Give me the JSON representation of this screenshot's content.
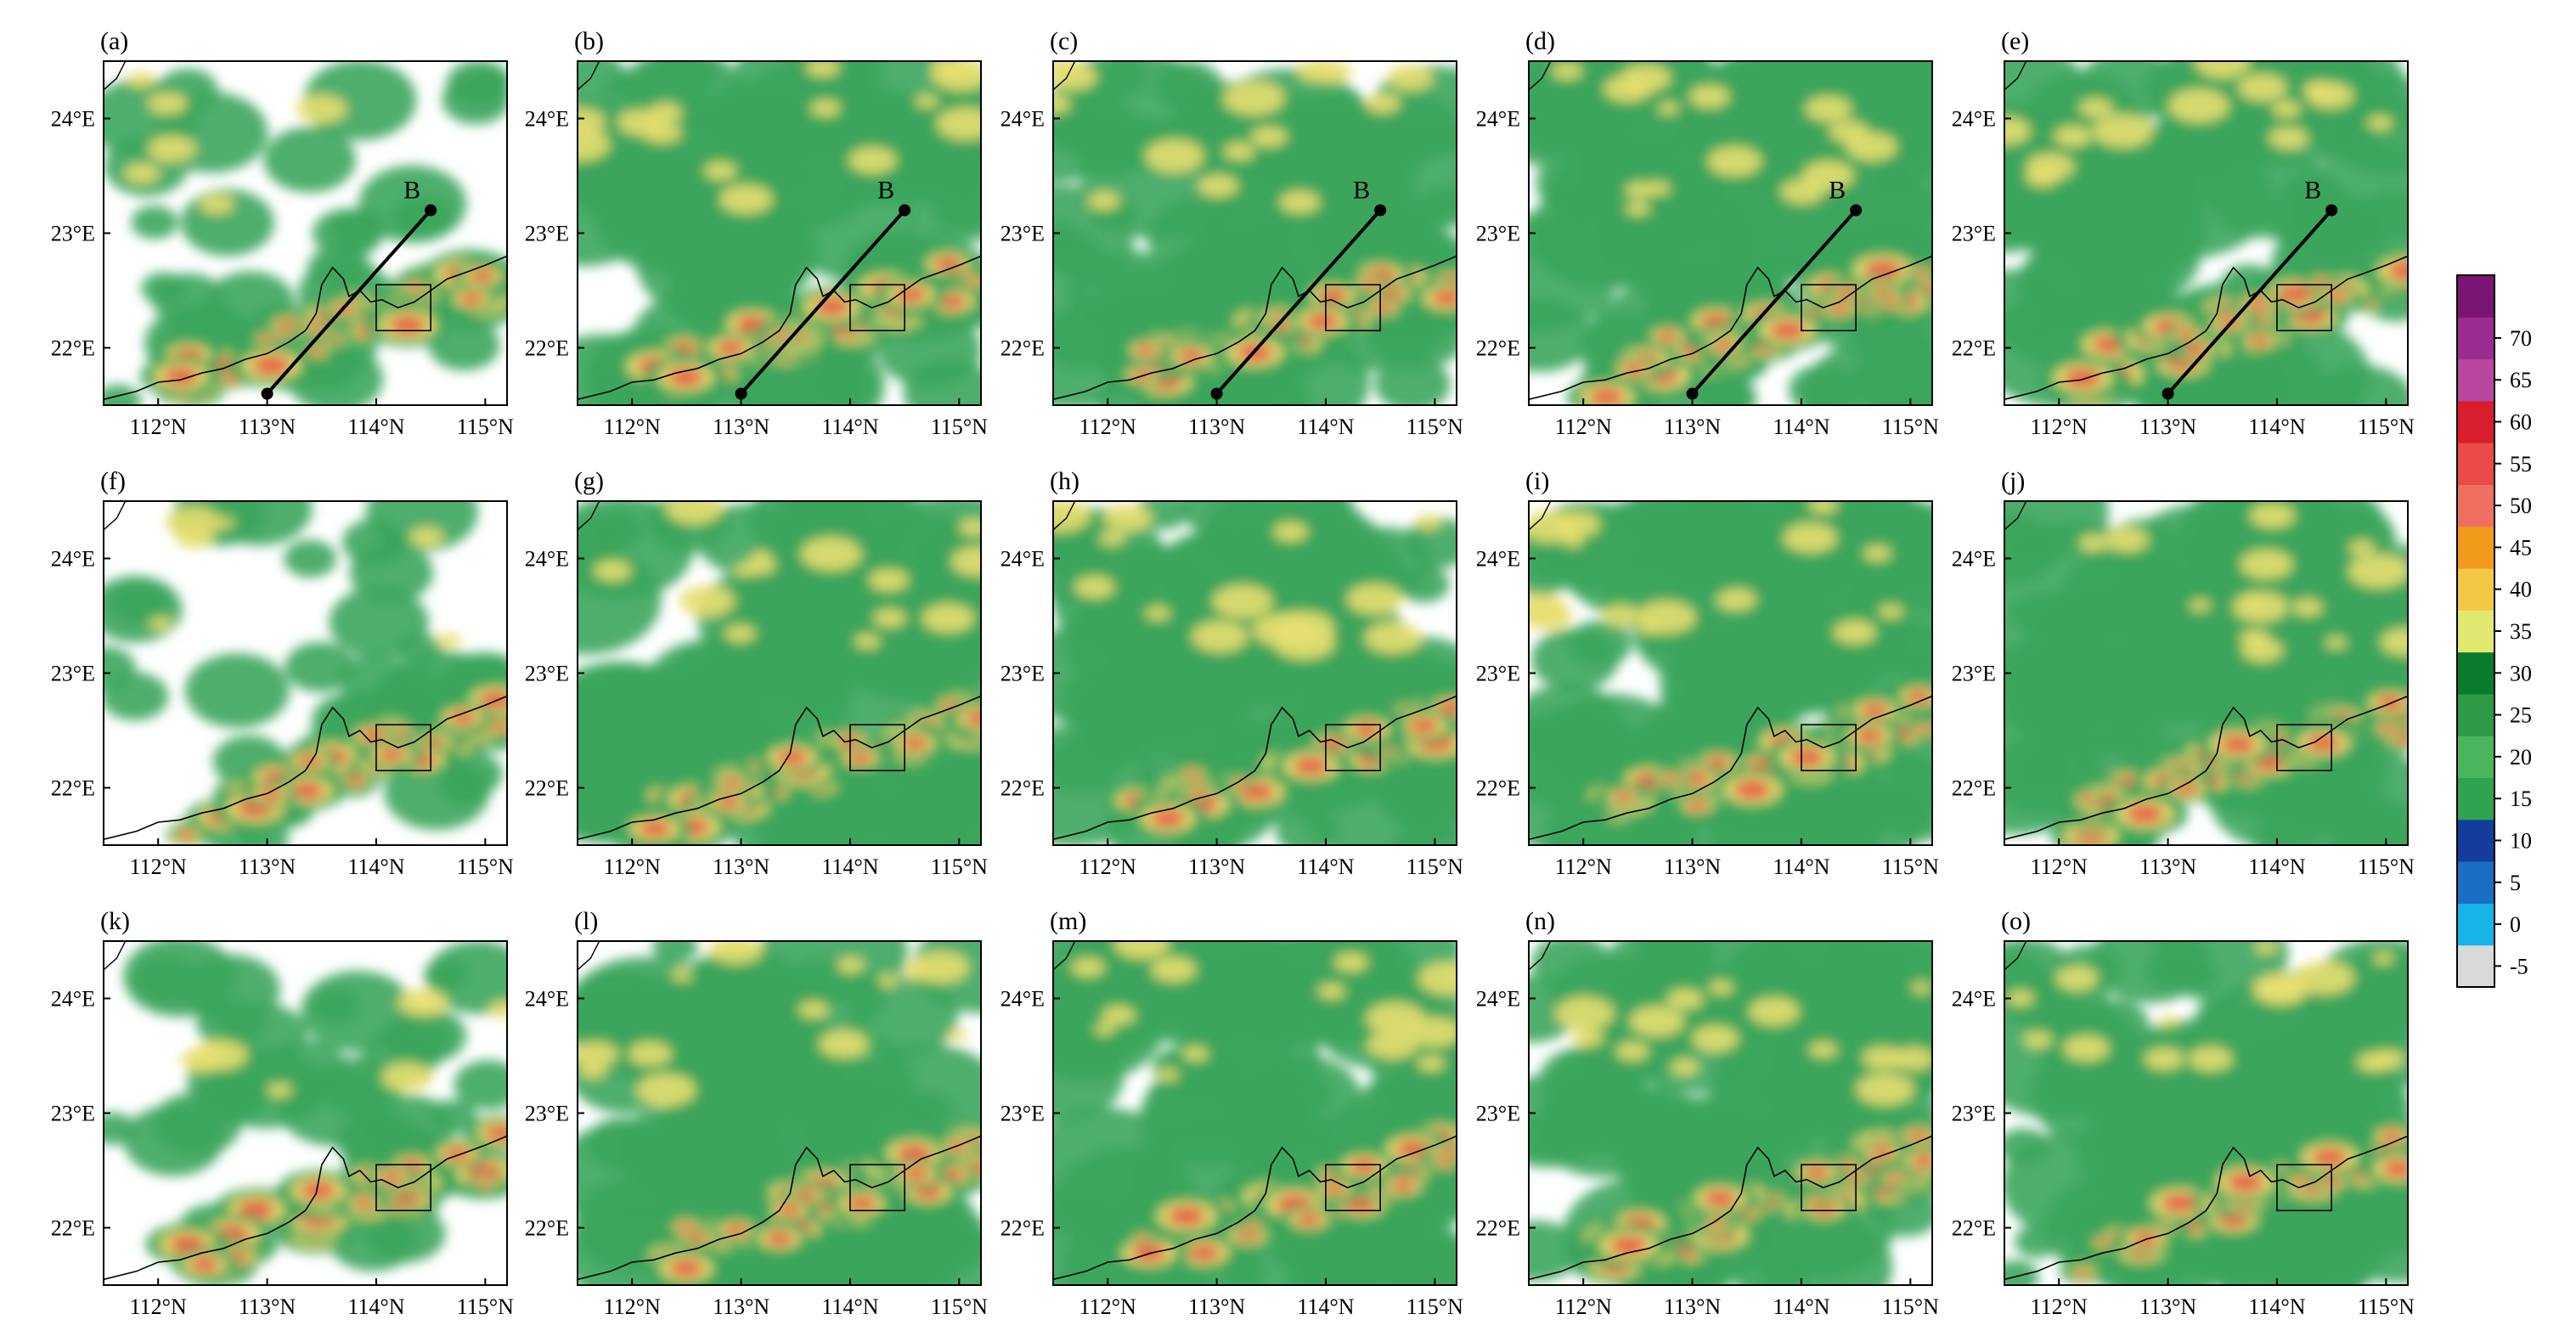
{
  "panels": [
    {
      "label": "(a)",
      "transect": true
    },
    {
      "label": "(b)",
      "transect": true
    },
    {
      "label": "(c)",
      "transect": true
    },
    {
      "label": "(d)",
      "transect": true
    },
    {
      "label": "(e)",
      "transect": true
    },
    {
      "label": "(f)",
      "transect": false
    },
    {
      "label": "(g)",
      "transect": false
    },
    {
      "label": "(h)",
      "transect": false
    },
    {
      "label": "(i)",
      "transect": false
    },
    {
      "label": "(j)",
      "transect": false
    },
    {
      "label": "(k)",
      "transect": false
    },
    {
      "label": "(l)",
      "transect": false
    },
    {
      "label": "(m)",
      "transect": false
    },
    {
      "label": "(n)",
      "transect": false
    },
    {
      "label": "(o)",
      "transect": false
    }
  ],
  "map_extent": {
    "lon": [
      111.5,
      115.2
    ],
    "lat": [
      21.5,
      24.5
    ]
  },
  "xticks": [
    {
      "value": 112,
      "label": "112°N"
    },
    {
      "value": 113,
      "label": "113°N"
    },
    {
      "value": 114,
      "label": "114°N"
    },
    {
      "value": 115,
      "label": "115°N"
    }
  ],
  "yticks": [
    {
      "value": 22,
      "label": "22°E"
    },
    {
      "value": 23,
      "label": "23°E"
    },
    {
      "value": 24,
      "label": "24°E"
    }
  ],
  "transect": {
    "start": [
      113.0,
      21.6
    ],
    "end": [
      114.5,
      23.2
    ],
    "end_label": "B"
  },
  "box": {
    "lon": [
      114.0,
      114.5
    ],
    "lat": [
      22.15,
      22.55
    ]
  },
  "colorbar": {
    "labels": [
      "70",
      "65",
      "60",
      "55",
      "50",
      "45",
      "40",
      "35",
      "30",
      "25",
      "20",
      "15",
      "10",
      "5",
      "0",
      "-5"
    ],
    "colors": [
      "#d9d9d9",
      "#16b4e8",
      "#1a6fc5",
      "#143c9c",
      "#2fa34e",
      "#4bb55d",
      "#2f9a45",
      "#0a7a2d",
      "#e0e870",
      "#f3c846",
      "#f29a1c",
      "#ef7060",
      "#ea4a48",
      "#d81e2c",
      "#b8479f",
      "#9a2d8f",
      "#7b1573"
    ]
  },
  "legend_colors": {
    "coast": "#000000",
    "low": "#3ba55c",
    "mid": "#e8df70",
    "high": "#e65a44"
  }
}
